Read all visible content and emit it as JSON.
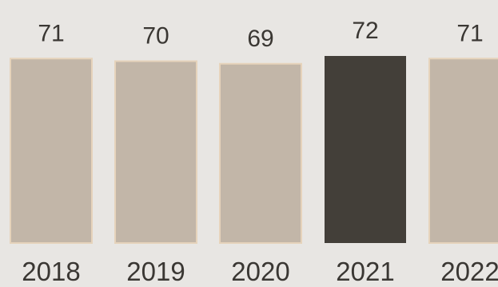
{
  "chart_data": {
    "type": "bar",
    "categories": [
      "2018",
      "2019",
      "2020",
      "2021",
      "2022"
    ],
    "values": [
      71,
      70,
      69,
      72,
      71
    ],
    "value_labels": [
      "71",
      "70",
      "69",
      "72",
      "71"
    ],
    "highlight_index": 3,
    "colors": {
      "bar": "#c2b6a8",
      "bar_edge": "#e6d3bb",
      "highlight": "#433f39",
      "background": "#e8e6e3",
      "text": "#3a3733"
    },
    "ylim": [
      0,
      72
    ],
    "grid": false,
    "legend": "none"
  }
}
